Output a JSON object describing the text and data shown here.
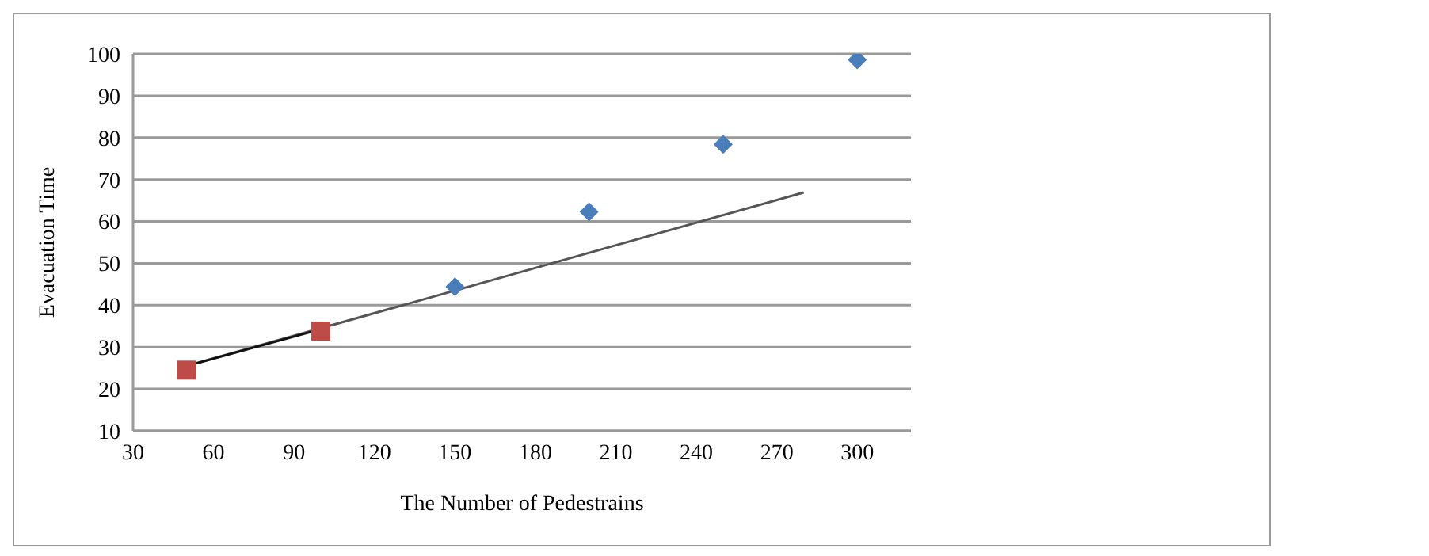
{
  "chart_data": {
    "type": "scatter",
    "xlabel": "The Number of Pedestrains",
    "ylabel": "Evacuation Time",
    "xlim": [
      30,
      320
    ],
    "xticks": [
      30,
      60,
      90,
      120,
      150,
      180,
      210,
      240,
      270,
      300
    ],
    "ylim": [
      10,
      100
    ],
    "yticks": [
      10,
      20,
      30,
      40,
      50,
      60,
      70,
      80,
      90,
      100
    ],
    "grid": "y",
    "series": [
      {
        "type": "line",
        "color": "#555555",
        "x": [
          50,
          280
        ],
        "values": [
          25.5,
          66.9
        ],
        "marker": "none"
      },
      {
        "type": "line",
        "color": "#111111",
        "x": [
          50,
          103
        ],
        "values": [
          25.5,
          34.8
        ],
        "marker": "none"
      },
      {
        "color": "#4a7ebb",
        "x": [
          150,
          200,
          250,
          300
        ],
        "values": [
          44.4,
          62.3,
          78.4,
          98.6
        ],
        "marker": "diamond"
      },
      {
        "color": "#be4b48",
        "x": [
          50,
          100
        ],
        "values": [
          24.5,
          33.8
        ],
        "marker": "square"
      }
    ]
  }
}
